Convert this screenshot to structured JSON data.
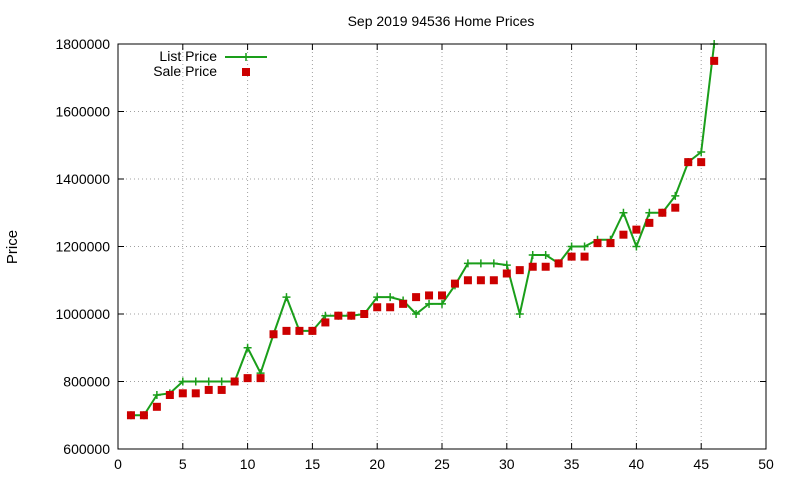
{
  "chart_data": {
    "type": "line",
    "title": "Sep 2019 94536 Home Prices",
    "xlabel": "",
    "ylabel": "Price",
    "xlim": [
      0,
      50
    ],
    "ylim": [
      600000,
      1800000
    ],
    "x_ticks": [
      0,
      5,
      10,
      15,
      20,
      25,
      30,
      35,
      40,
      45,
      50
    ],
    "y_ticks": [
      600000,
      800000,
      1000000,
      1200000,
      1400000,
      1600000,
      1800000
    ],
    "grid": true,
    "legend_position": "top-left",
    "x": [
      1,
      2,
      3,
      4,
      5,
      6,
      7,
      8,
      9,
      10,
      11,
      12,
      13,
      14,
      15,
      16,
      17,
      18,
      19,
      20,
      21,
      22,
      23,
      24,
      25,
      26,
      27,
      28,
      29,
      30,
      31,
      32,
      33,
      34,
      35,
      36,
      37,
      38,
      39,
      40,
      41,
      42,
      43,
      44,
      45,
      46
    ],
    "series": [
      {
        "name": "List Price",
        "style": "line-plus",
        "color": "#1a9e1a",
        "values": [
          700000,
          700000,
          760000,
          765000,
          800000,
          800000,
          800000,
          800000,
          800000,
          900000,
          825000,
          940000,
          1050000,
          950000,
          950000,
          995000,
          995000,
          995000,
          1000000,
          1050000,
          1050000,
          1040000,
          1000000,
          1030000,
          1030000,
          1085000,
          1150000,
          1150000,
          1150000,
          1145000,
          1000000,
          1175000,
          1175000,
          1150000,
          1200000,
          1200000,
          1220000,
          1220000,
          1300000,
          1200000,
          1300000,
          1300000,
          1350000,
          1450000,
          1480000,
          1800000
        ]
      },
      {
        "name": "Sale Price",
        "style": "square-markers",
        "color": "#cc0000",
        "values": [
          700000,
          700000,
          725000,
          760000,
          765000,
          765000,
          775000,
          775000,
          800000,
          810000,
          810000,
          940000,
          950000,
          950000,
          950000,
          975000,
          995000,
          995000,
          1000000,
          1020000,
          1020000,
          1030000,
          1050000,
          1055000,
          1055000,
          1090000,
          1100000,
          1100000,
          1100000,
          1120000,
          1130000,
          1140000,
          1140000,
          1150000,
          1170000,
          1170000,
          1210000,
          1210000,
          1235000,
          1250000,
          1270000,
          1300000,
          1315000,
          1450000,
          1450000,
          1750000
        ]
      }
    ]
  }
}
